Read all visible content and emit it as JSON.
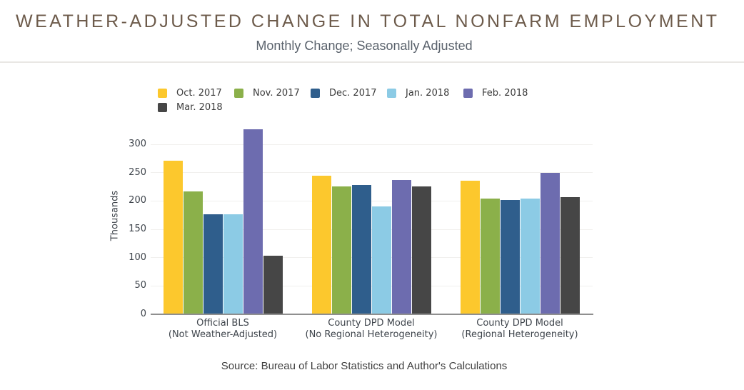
{
  "header": {
    "title": "WEATHER-ADJUSTED CHANGE IN TOTAL NONFARM EMPLOYMENT",
    "subtitle": "Monthly Change; Seasonally Adjusted"
  },
  "footer": {
    "source": "Source: Bureau of Labor Statistics and Author's Calculations"
  },
  "ui_colors": {
    "title": "#6D5B4B",
    "subtitle": "#5A626C",
    "divider": "#E9E7E4",
    "axis_text": "#3F454C",
    "legend_text": "#3B3B3B",
    "grid": "#F1F0EE",
    "axis_line": "#8F8F8F",
    "source_text": "#3F3F3F",
    "background": "#FFFFFF"
  },
  "chart_data": {
    "type": "bar",
    "title": "WEATHER-ADJUSTED CHANGE IN TOTAL NONFARM EMPLOYMENT",
    "subtitle": "Monthly Change; Seasonally Adjusted",
    "ylabel": "Thousands",
    "xlabel": "",
    "ylim": [
      0,
      340
    ],
    "yticks": [
      0,
      50,
      100,
      150,
      200,
      250,
      300
    ],
    "grid": true,
    "legend_position": "top-left",
    "categories": [
      [
        "Official BLS",
        "(Not Weather-Adjusted)"
      ],
      [
        "County DPD Model",
        "(No Regional Heterogeneity)"
      ],
      [
        "County DPD Model",
        "(Regional Heterogeneity)"
      ]
    ],
    "series": [
      {
        "name": "Oct. 2017",
        "color": "#FCC82D",
        "values": [
          271,
          244,
          236
        ]
      },
      {
        "name": "Nov. 2017",
        "color": "#8BB04A",
        "values": [
          217,
          225,
          204
        ]
      },
      {
        "name": "Dec. 2017",
        "color": "#2F5E8C",
        "values": [
          176,
          228,
          202
        ]
      },
      {
        "name": "Jan. 2018",
        "color": "#8CCBE5",
        "values": [
          177,
          190,
          204
        ]
      },
      {
        "name": "Feb. 2018",
        "color": "#6D6CAF",
        "values": [
          326,
          237,
          249
        ]
      },
      {
        "name": "Mar. 2018",
        "color": "#464646",
        "values": [
          103,
          226,
          207
        ]
      }
    ],
    "source": "Source: Bureau of Labor Statistics and Author's Calculations"
  }
}
